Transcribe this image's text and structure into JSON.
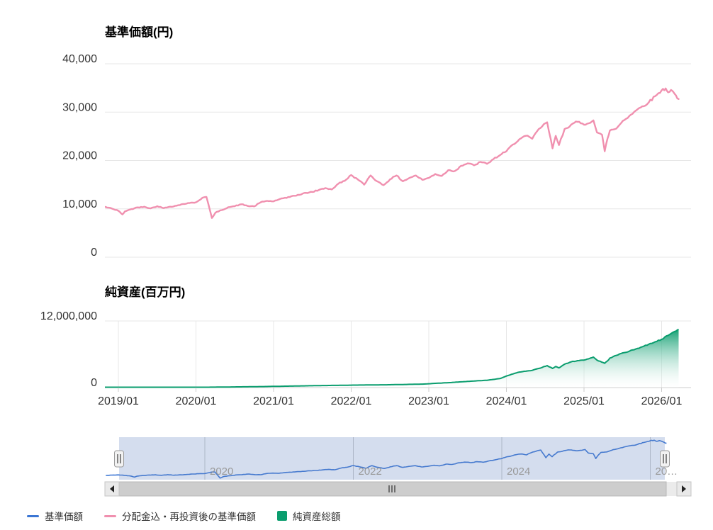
{
  "page": {
    "background": "#ffffff"
  },
  "colors": {
    "price_line": "#3b76d4",
    "reinvested_line": "#f090af",
    "net_assets": "#0a9d6e",
    "grid": "#e7e7e7",
    "axis_line": "#cccccc",
    "axis_text": "#333333",
    "nav_label": "#999999",
    "nav_mask": "rgba(102,133,194,0.28)",
    "scroll_thumb": "#cdcdcd",
    "scroll_track": "#ebebeb",
    "scroll_button": "#e9e9e9"
  },
  "xaxis": {
    "ticks": [
      {
        "label": "2019/01",
        "month": 0
      },
      {
        "label": "2020/01",
        "month": 12
      },
      {
        "label": "2021/01",
        "month": 24
      },
      {
        "label": "2022/01",
        "month": 36
      },
      {
        "label": "2023/01",
        "month": 48
      },
      {
        "label": "2024/01",
        "month": 60
      },
      {
        "label": "2025/01",
        "month": 72
      },
      {
        "label": "2026/01",
        "month": 84
      }
    ]
  },
  "chart_data": [
    {
      "type": "line",
      "title": "基準価額(円)",
      "ylabel": "基準価額(円)",
      "ylim": [
        0,
        40000
      ],
      "grid": true,
      "yticks": [
        {
          "value": 40000,
          "label": "40,000"
        },
        {
          "value": 30000,
          "label": "30,000"
        },
        {
          "value": 20000,
          "label": "20,000"
        },
        {
          "value": 10000,
          "label": "10,000"
        },
        {
          "value": 0,
          "label": "0"
        }
      ],
      "series": [
        {
          "name": "分配金込・再投資後の基準価額",
          "color": "#f090af",
          "points": [
            [
              "2018/09",
              10000
            ],
            [
              "2018/10",
              10250
            ],
            [
              "2018/11",
              10400
            ],
            [
              "2018/12",
              10050
            ],
            [
              "2019/01",
              9600
            ],
            [
              "2019/01/20",
              8850
            ],
            [
              "2019/02",
              9450
            ],
            [
              "2019/03",
              9950
            ],
            [
              "2019/04",
              10300
            ],
            [
              "2019/05",
              10450
            ],
            [
              "2019/06",
              10100
            ],
            [
              "2019/07",
              10550
            ],
            [
              "2019/08",
              10150
            ],
            [
              "2019/09",
              10450
            ],
            [
              "2019/10",
              10650
            ],
            [
              "2019/11",
              11000
            ],
            [
              "2019/12",
              11200
            ],
            [
              "2020/01",
              11350
            ],
            [
              "2020/02",
              12300
            ],
            [
              "2020/02/20",
              12450
            ],
            [
              "2020/03/15",
              8100
            ],
            [
              "2020/04",
              9200
            ],
            [
              "2020/05",
              9750
            ],
            [
              "2020/06",
              10350
            ],
            [
              "2020/07",
              10550
            ],
            [
              "2020/08",
              10950
            ],
            [
              "2020/09",
              10600
            ],
            [
              "2020/10",
              10500
            ],
            [
              "2020/11",
              11350
            ],
            [
              "2020/12",
              11650
            ],
            [
              "2021/01",
              11550
            ],
            [
              "2021/02",
              12050
            ],
            [
              "2021/03",
              12250
            ],
            [
              "2021/04",
              12700
            ],
            [
              "2021/05",
              12900
            ],
            [
              "2021/06",
              13300
            ],
            [
              "2021/07",
              13500
            ],
            [
              "2021/08",
              13900
            ],
            [
              "2021/09",
              14300
            ],
            [
              "2021/10",
              14000
            ],
            [
              "2021/11",
              15200
            ],
            [
              "2021/12",
              15800
            ],
            [
              "2022/01",
              17000
            ],
            [
              "2022/02",
              16100
            ],
            [
              "2022/03",
              15000
            ],
            [
              "2022/03/25",
              16600
            ],
            [
              "2022/04",
              16900
            ],
            [
              "2022/05",
              15700
            ],
            [
              "2022/06",
              14900
            ],
            [
              "2022/07",
              16100
            ],
            [
              "2022/08",
              16900
            ],
            [
              "2022/09",
              15700
            ],
            [
              "2022/10",
              16400
            ],
            [
              "2022/11",
              16900
            ],
            [
              "2022/12",
              16000
            ],
            [
              "2023/01",
              16400
            ],
            [
              "2023/02",
              17200
            ],
            [
              "2023/03",
              16800
            ],
            [
              "2023/04",
              18000
            ],
            [
              "2023/05",
              17800
            ],
            [
              "2023/06",
              18900
            ],
            [
              "2023/07",
              19400
            ],
            [
              "2023/08",
              19000
            ],
            [
              "2023/09",
              19700
            ],
            [
              "2023/10",
              19300
            ],
            [
              "2023/11",
              20300
            ],
            [
              "2023/12",
              21100
            ],
            [
              "2024/01",
              21900
            ],
            [
              "2024/02",
              23300
            ],
            [
              "2024/03",
              24400
            ],
            [
              "2024/04",
              25100
            ],
            [
              "2024/05",
              24500
            ],
            [
              "2024/06",
              26500
            ],
            [
              "2024/07/10",
              27900
            ],
            [
              "2024/08/05",
              22500
            ],
            [
              "2024/08/20",
              25100
            ],
            [
              "2024/09/05",
              23200
            ],
            [
              "2024/10",
              26500
            ],
            [
              "2024/11",
              27400
            ],
            [
              "2024/12",
              28000
            ],
            [
              "2025/01",
              27400
            ],
            [
              "2025/02/15",
              28300
            ],
            [
              "2025/03",
              25800
            ],
            [
              "2025/03/25",
              25300
            ],
            [
              "2025/04/07",
              21900
            ],
            [
              "2025/04/20",
              24500
            ],
            [
              "2025/05",
              26200
            ],
            [
              "2025/06",
              26600
            ],
            [
              "2025/07",
              28200
            ],
            [
              "2025/08",
              29200
            ],
            [
              "2025/09",
              30300
            ],
            [
              "2025/10",
              31200
            ],
            [
              "2025/11",
              32000
            ],
            [
              "2025/12",
              33300
            ],
            [
              "2026/01",
              34500
            ],
            [
              "2026/01/20",
              34900
            ],
            [
              "2026/02",
              34100
            ],
            [
              "2026/02/15",
              34600
            ],
            [
              "2026/03",
              33800
            ],
            [
              "2026/03/20",
              32700
            ]
          ]
        },
        {
          "name": "基準価額",
          "color": "#3b76d4",
          "note": "identical to reinvested series (no distributions paid); hidden beneath pink line, shown in navigator",
          "points": "same_as_series_0"
        }
      ]
    },
    {
      "type": "area",
      "title": "純資産(百万円)",
      "ylabel": "純資産(百万円)",
      "ylim": [
        0,
        12500000
      ],
      "grid": true,
      "yticks": [
        {
          "value": 12000000,
          "label": "12,000,000"
        },
        {
          "value": 0,
          "label": "0"
        }
      ],
      "series": [
        {
          "name": "純資産総額",
          "color": "#0a9d6e",
          "points": [
            [
              "2018/09",
              1000
            ],
            [
              "2018/12",
              6000
            ],
            [
              "2019/03",
              14000
            ],
            [
              "2019/06",
              24000
            ],
            [
              "2019/09",
              37000
            ],
            [
              "2019/12",
              55000
            ],
            [
              "2020/03",
              70000
            ],
            [
              "2020/06",
              105000
            ],
            [
              "2020/09",
              145000
            ],
            [
              "2020/12",
              195000
            ],
            [
              "2021/03",
              255000
            ],
            [
              "2021/06",
              315000
            ],
            [
              "2021/09",
              375000
            ],
            [
              "2021/12",
              420000
            ],
            [
              "2022/03",
              465000
            ],
            [
              "2022/06",
              495000
            ],
            [
              "2022/09",
              555000
            ],
            [
              "2022/12",
              620000
            ],
            [
              "2023/02",
              760000
            ],
            [
              "2023/04",
              880000
            ],
            [
              "2023/06",
              1030000
            ],
            [
              "2023/08",
              1180000
            ],
            [
              "2023/10",
              1320000
            ],
            [
              "2023/12",
              1620000
            ],
            [
              "2024/01",
              2080000
            ],
            [
              "2024/02",
              2450000
            ],
            [
              "2024/03",
              2800000
            ],
            [
              "2024/04",
              2950000
            ],
            [
              "2024/05",
              3100000
            ],
            [
              "2024/06",
              3450000
            ],
            [
              "2024/07/10",
              3960000
            ],
            [
              "2024/08/05",
              3450000
            ],
            [
              "2024/08/20",
              3800000
            ],
            [
              "2024/09/05",
              3550000
            ],
            [
              "2024/10",
              4210000
            ],
            [
              "2024/11",
              4640000
            ],
            [
              "2024/12",
              4850000
            ],
            [
              "2025/01",
              4950000
            ],
            [
              "2025/02/15",
              5490000
            ],
            [
              "2025/03",
              4950000
            ],
            [
              "2025/04/07",
              4380000
            ],
            [
              "2025/04/20",
              4800000
            ],
            [
              "2025/05",
              5320000
            ],
            [
              "2025/06",
              5800000
            ],
            [
              "2025/07",
              6250000
            ],
            [
              "2025/08",
              6550000
            ],
            [
              "2025/09",
              6950000
            ],
            [
              "2025/10",
              7350000
            ],
            [
              "2025/11",
              7800000
            ],
            [
              "2025/12",
              8250000
            ],
            [
              "2026/01",
              8700000
            ],
            [
              "2026/02",
              9400000
            ],
            [
              "2026/03",
              10100000
            ],
            [
              "2026/03/20",
              10500000
            ]
          ]
        }
      ]
    }
  ],
  "navigator": {
    "series_name": "基準価額",
    "labels": [
      {
        "label": "2020",
        "month": 12
      },
      {
        "label": "2022",
        "month": 36
      },
      {
        "label": "2024",
        "month": 60
      },
      {
        "label": "20…",
        "month": 84
      }
    ],
    "selected_range": {
      "from": "2018/11",
      "to": "2026/03"
    }
  },
  "scrollbar": {
    "left_arrow": "◀",
    "right_arrow": "▶",
    "grip": "|||"
  },
  "legend": {
    "items": [
      {
        "label": "基準価額",
        "color": "#3b76d4",
        "swatch": "line"
      },
      {
        "label": "分配金込・再投資後の基準価額",
        "color": "#f090af",
        "swatch": "line"
      },
      {
        "label": "純資産総額",
        "color": "#0a9d6e",
        "swatch": "square"
      }
    ]
  }
}
